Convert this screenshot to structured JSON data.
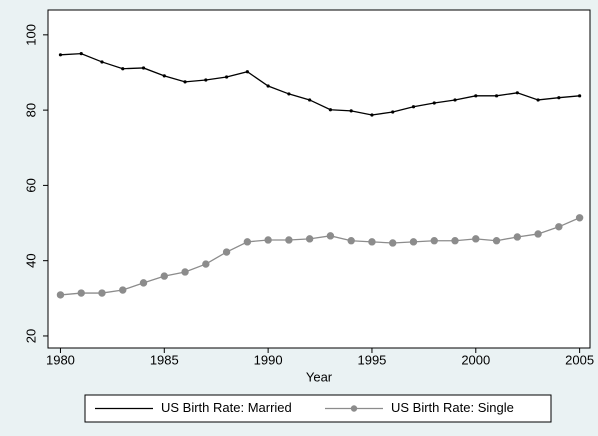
{
  "chart_data": {
    "type": "line",
    "x_label": "Year",
    "x": [
      1980,
      1981,
      1982,
      1983,
      1984,
      1985,
      1986,
      1987,
      1988,
      1989,
      1990,
      1991,
      1992,
      1993,
      1994,
      1995,
      1996,
      1997,
      1998,
      1999,
      2000,
      2001,
      2002,
      2003,
      2004,
      2005
    ],
    "series": [
      {
        "name": "US Birth Rate: Married",
        "color": "#000000",
        "marker": "dot",
        "values": [
          94.7,
          95.0,
          92.8,
          91.0,
          91.2,
          89.1,
          87.5,
          88.0,
          88.8,
          90.2,
          86.4,
          84.3,
          82.7,
          80.1,
          79.8,
          78.7,
          79.5,
          80.9,
          81.9,
          82.7,
          83.8,
          83.8,
          84.6,
          82.7,
          83.3,
          83.8
        ]
      },
      {
        "name": "US Birth Rate: Single",
        "color": "#8c8c8c",
        "marker": "circle",
        "values": [
          30.9,
          31.4,
          31.4,
          32.2,
          34.1,
          35.9,
          37.0,
          39.1,
          42.3,
          45.0,
          45.5,
          45.5,
          45.8,
          46.6,
          45.3,
          45.0,
          44.7,
          45.0,
          45.3,
          45.3,
          45.8,
          45.3,
          46.3,
          47.1,
          49.0,
          51.4
        ]
      }
    ],
    "xlim": [
      1979.4,
      2005.5
    ],
    "xticks": [
      1980,
      1985,
      1990,
      1995,
      2000,
      2005
    ],
    "ylim": [
      16.8,
      106.6
    ],
    "yticks": [
      20,
      40,
      60,
      80,
      100
    ],
    "grid": false,
    "legend": "bottom"
  }
}
